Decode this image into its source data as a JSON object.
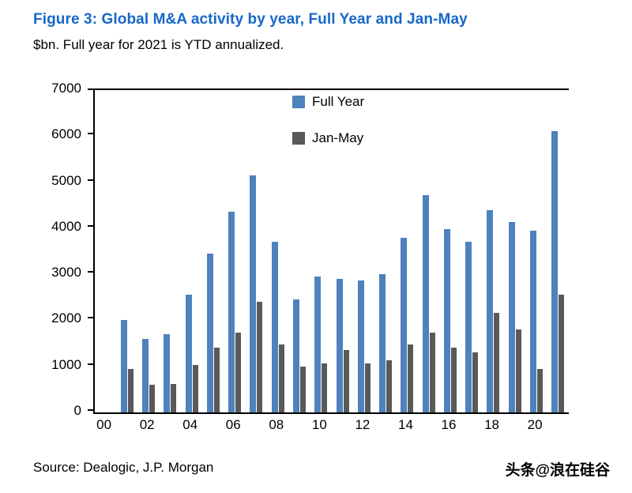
{
  "header": {
    "title": "Figure 3: Global M&A activity by year, Full Year and Jan-May",
    "subtitle": "$bn. Full year for 2021 is YTD annualized."
  },
  "colors": {
    "title": "#1668c8",
    "full_year_bar": "#4f81bd",
    "jan_may_bar": "#595959",
    "axis": "#000000"
  },
  "chart_data": {
    "type": "bar",
    "title": "Figure 3: Global M&A activity by year, Full Year and Jan-May",
    "subtitle": "$bn. Full year for 2021 is YTD annualized.",
    "xlabel": "",
    "ylabel": "$bn",
    "ylim": [
      0,
      7000
    ],
    "ytick_step": 1000,
    "grid": false,
    "legend_position": "top-center-inside",
    "x_label_every": 2,
    "categories": [
      "00",
      "01",
      "02",
      "03",
      "04",
      "05",
      "06",
      "07",
      "08",
      "09",
      "10",
      "11",
      "12",
      "13",
      "14",
      "15",
      "16",
      "17",
      "18",
      "19",
      "20",
      "21"
    ],
    "series": [
      {
        "name": "Full Year",
        "color": "#4f81bd",
        "values": [
          null,
          2000,
          1600,
          1700,
          2550,
          3450,
          4350,
          5150,
          3700,
          2450,
          2950,
          2900,
          2870,
          3000,
          3800,
          4720,
          3980,
          3700,
          4400,
          4130,
          3950,
          6100
        ]
      },
      {
        "name": "Jan-May",
        "color": "#595959",
        "values": [
          null,
          950,
          600,
          620,
          1030,
          1400,
          1730,
          2400,
          1480,
          1000,
          1070,
          1350,
          1070,
          1140,
          1480,
          1730,
          1400,
          1310,
          2170,
          1800,
          950,
          2550
        ]
      }
    ]
  },
  "footer": {
    "source": "Source: Dealogic, J.P. Morgan",
    "watermark": "头条@浪在硅谷"
  }
}
